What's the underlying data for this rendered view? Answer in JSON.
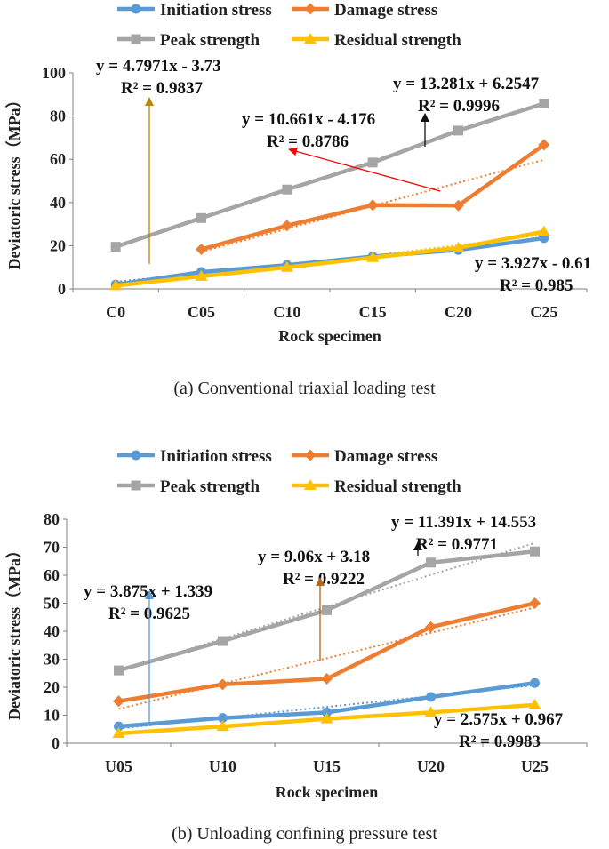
{
  "chart_data": [
    {
      "type": "line",
      "caption": "(a) Conventional triaxial loading test",
      "xlabel": "Rock specimen",
      "ylabel": "Deviatoric stress（MPa）",
      "categories": [
        "C0",
        "C05",
        "C10",
        "C15",
        "C20",
        "C25"
      ],
      "ylim": [
        0,
        100
      ],
      "yticks": [
        "0",
        "20",
        "40",
        "60",
        "80",
        "100"
      ],
      "legend": {
        "placement": "top",
        "entries": [
          "Initiation stress",
          "Damage stress",
          "Peak strength",
          "Residual strength"
        ]
      },
      "series": [
        {
          "name": "Initiation stress",
          "color": "#5b9bd5",
          "marker": "circle",
          "values": [
            2.0,
            7.8,
            11.0,
            15.0,
            18.0,
            23.5
          ]
        },
        {
          "name": "Damage stress",
          "color": "#ed7d31",
          "marker": "diamond",
          "values": [
            null,
            18.3,
            29.3,
            38.8,
            38.6,
            66.7
          ]
        },
        {
          "name": "Peak strength",
          "color": "#a5a5a5",
          "marker": "square",
          "values": [
            19.5,
            32.8,
            46.0,
            58.5,
            73.3,
            85.8
          ]
        },
        {
          "name": "Residual strength",
          "color": "#ffc000",
          "marker": "triangle",
          "values": [
            1.5,
            5.8,
            10.0,
            14.5,
            19.0,
            26.5
          ]
        }
      ],
      "annotations": [
        {
          "line1": "y = 4.7971x - 3.73",
          "line2": "R² = 0.9837"
        },
        {
          "line1": "y = 10.661x - 4.176",
          "line2": "R² = 0.8786"
        },
        {
          "line1": "y = 13.281x + 6.2547",
          "line2": "R² = 0.9996"
        },
        {
          "line1": "y = 3.927x - 0.61",
          "line2": "R² = 0.985"
        }
      ]
    },
    {
      "type": "line",
      "caption": "(b) Unloading confining pressure test",
      "xlabel": "Rock specimen",
      "ylabel": "Deviatoric stress（MPa）",
      "categories": [
        "U05",
        "U10",
        "U15",
        "U20",
        "U25"
      ],
      "ylim": [
        0,
        80
      ],
      "yticks": [
        "0",
        "10",
        "20",
        "30",
        "40",
        "50",
        "60",
        "70",
        "80"
      ],
      "legend": {
        "placement": "top",
        "entries": [
          "Initiation stress",
          "Damage stress",
          "Peak strength",
          "Residual strength"
        ]
      },
      "series": [
        {
          "name": "Initiation stress",
          "color": "#5b9bd5",
          "marker": "circle",
          "values": [
            6.0,
            9.0,
            11.0,
            16.5,
            21.5
          ]
        },
        {
          "name": "Damage stress",
          "color": "#ed7d31",
          "marker": "diamond",
          "values": [
            15.0,
            21.0,
            23.0,
            41.5,
            50.0
          ]
        },
        {
          "name": "Peak strength",
          "color": "#a5a5a5",
          "marker": "square",
          "values": [
            26.0,
            36.5,
            47.5,
            64.5,
            68.5
          ]
        },
        {
          "name": "Residual strength",
          "color": "#ffc000",
          "marker": "triangle",
          "values": [
            3.5,
            6.0,
            8.7,
            11.0,
            13.7
          ]
        }
      ],
      "annotations": [
        {
          "line1": "y = 3.875x + 1.339",
          "line2": "R² = 0.9625"
        },
        {
          "line1": "y = 9.06x + 3.18",
          "line2": "R² = 0.9222"
        },
        {
          "line1": "y = 11.391x + 14.553",
          "line2": "R² = 0.9771"
        },
        {
          "line1": "y = 2.575x + 0.967",
          "line2": "R² = 0.9983"
        }
      ]
    }
  ]
}
